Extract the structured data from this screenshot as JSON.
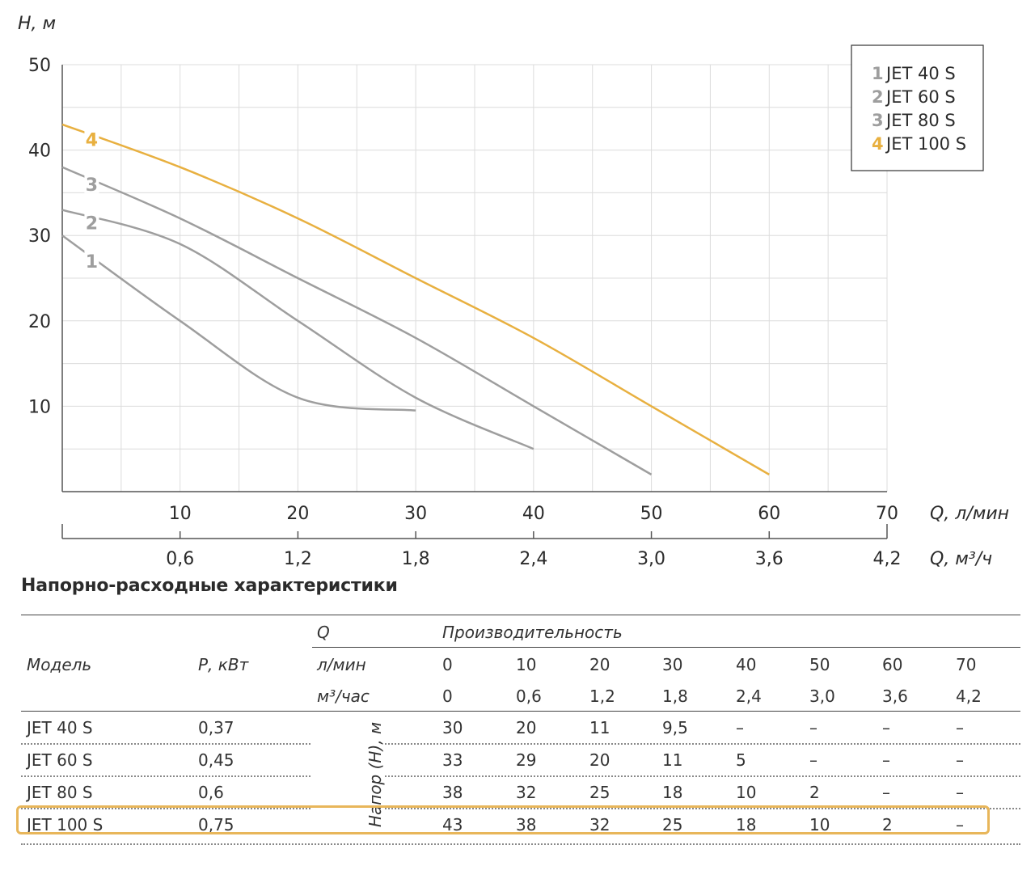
{
  "chart_data": {
    "type": "line",
    "ylabel": "H, м",
    "xlabel": "Q, л/мин",
    "x2label": "Q, м³/ч",
    "ylim": [
      0,
      50
    ],
    "xlim": [
      0,
      70
    ],
    "yticks": [
      "10",
      "20",
      "30",
      "40",
      "50"
    ],
    "xticks": [
      "10",
      "20",
      "30",
      "40",
      "50",
      "60",
      "70"
    ],
    "x2ticks": [
      "0,6",
      "1,2",
      "1,8",
      "2,4",
      "3,0",
      "3,6",
      "4,2"
    ],
    "grid": true,
    "legend_position": "top-right",
    "series": [
      {
        "name": "JET 40 S",
        "marker": "1",
        "color": "#9e9e9e",
        "x": [
          0,
          10,
          20,
          30
        ],
        "y": [
          30,
          20,
          11,
          9.5
        ]
      },
      {
        "name": "JET 60 S",
        "marker": "2",
        "color": "#9e9e9e",
        "x": [
          0,
          10,
          20,
          30,
          40
        ],
        "y": [
          33,
          29,
          20,
          11,
          5
        ]
      },
      {
        "name": "JET 80 S",
        "marker": "3",
        "color": "#9e9e9e",
        "x": [
          0,
          10,
          20,
          30,
          40,
          50
        ],
        "y": [
          38,
          32,
          25,
          18,
          10,
          2
        ]
      },
      {
        "name": "JET 100 S",
        "marker": "4",
        "color": "#e8b040",
        "x": [
          0,
          10,
          20,
          30,
          40,
          50,
          60
        ],
        "y": [
          43,
          38,
          32,
          25,
          18,
          10,
          2
        ]
      }
    ]
  },
  "table": {
    "title": "Напорно-расходные характеристики",
    "model_header": "Модель",
    "power_header": "Р, кВт",
    "q_header": "Q",
    "performance_header": "Производительность",
    "unit_lmin": "л/мин",
    "unit_m3h": "м³/час",
    "head_label": "Напор (Н), м",
    "lmin_values": [
      "0",
      "10",
      "20",
      "30",
      "40",
      "50",
      "60",
      "70"
    ],
    "m3h_values": [
      "0",
      "0,6",
      "1,2",
      "1,8",
      "2,4",
      "3,0",
      "3,6",
      "4,2"
    ],
    "rows": [
      {
        "model": "JET 40 S",
        "power": "0,37",
        "values": [
          "30",
          "20",
          "11",
          "9,5",
          "–",
          "–",
          "–",
          "–"
        ]
      },
      {
        "model": "JET 60 S",
        "power": "0,45",
        "values": [
          "33",
          "29",
          "20",
          "11",
          "5",
          "–",
          "–",
          "–"
        ]
      },
      {
        "model": "JET 80 S",
        "power": "0,6",
        "values": [
          "38",
          "32",
          "25",
          "18",
          "10",
          "2",
          "–",
          "–"
        ]
      },
      {
        "model": "JET 100 S",
        "power": "0,75",
        "values": [
          "43",
          "38",
          "32",
          "25",
          "18",
          "10",
          "2",
          "–"
        ]
      }
    ],
    "highlight_color": "#e8b65a"
  }
}
